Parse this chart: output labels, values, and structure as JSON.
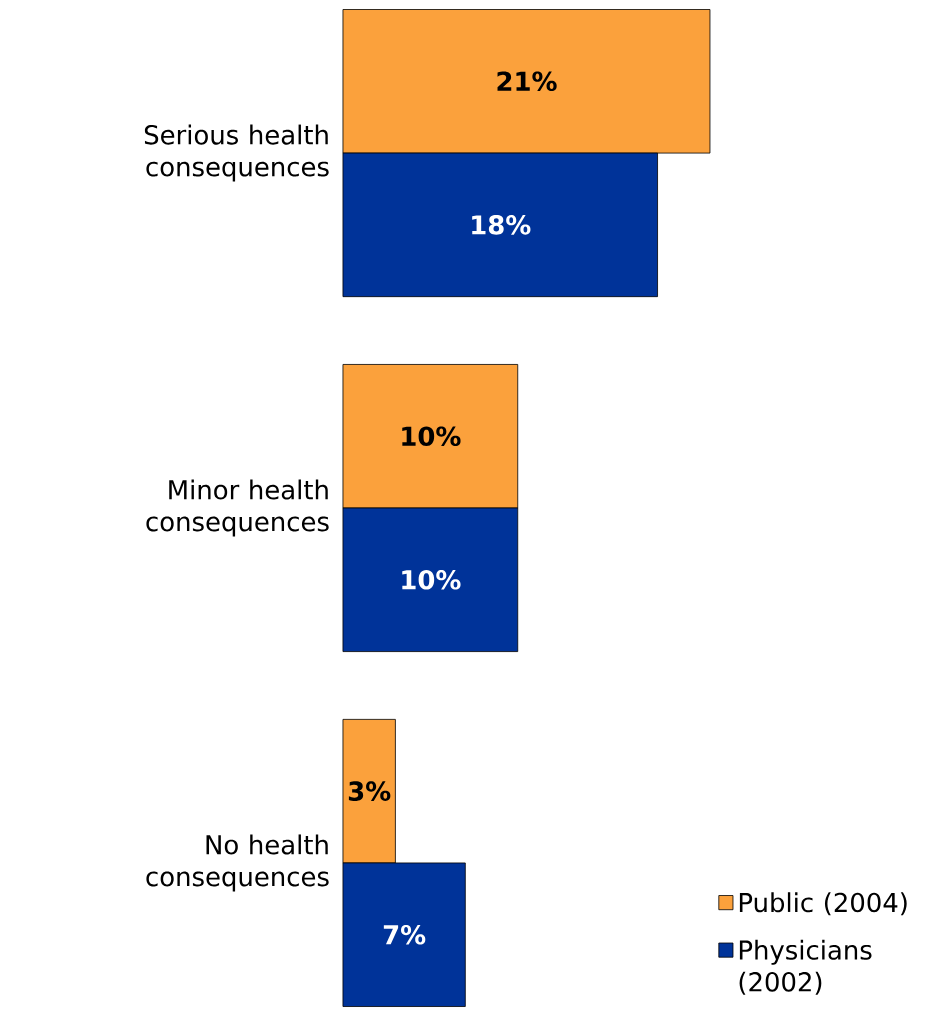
{
  "chart_data": {
    "type": "bar",
    "orientation": "horizontal",
    "categories": [
      "Serious health consequences",
      "Minor health consequences",
      "No health consequences"
    ],
    "series": [
      {
        "name": "Public (2004)",
        "color": "#fba13c",
        "values": [
          21,
          10,
          3
        ],
        "value_labels": [
          "21%",
          "10%",
          "3%"
        ]
      },
      {
        "name": "Physicians (2002)",
        "color": "#003399",
        "values": [
          18,
          10,
          7
        ],
        "value_labels": [
          "18%",
          "10%",
          "7%"
        ]
      }
    ],
    "legend": "bottom right",
    "tick_labels": "y"
  }
}
